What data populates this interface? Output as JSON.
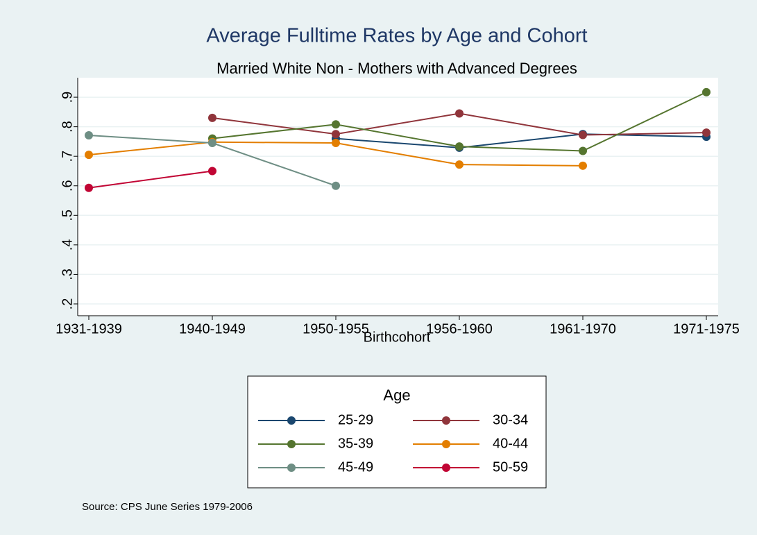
{
  "chart_data": {
    "type": "line",
    "title": "Average Fulltime Rates by Age and Cohort",
    "subtitle": "Married White Non - Mothers with Advanced Degrees",
    "x_label": "Birthcohort",
    "note": "Source: CPS June Series 1979-2006",
    "legend_title": "Age",
    "categories": [
      "1931-1939",
      "1940-1949",
      "1950-1955",
      "1956-1960",
      "1961-1970",
      "1971-1975"
    ],
    "series": [
      {
        "name": "25-29",
        "color": "#1a476f",
        "values": [
          null,
          null,
          0.76,
          0.729,
          0.775,
          0.766
        ]
      },
      {
        "name": "30-34",
        "color": "#90353b",
        "values": [
          null,
          0.83,
          0.775,
          0.845,
          0.772,
          0.78
        ]
      },
      {
        "name": "35-39",
        "color": "#55752f",
        "values": [
          null,
          0.76,
          0.808,
          0.733,
          0.718,
          0.917
        ]
      },
      {
        "name": "40-44",
        "color": "#e37e00",
        "values": [
          0.705,
          0.748,
          0.745,
          0.672,
          0.668,
          null
        ]
      },
      {
        "name": "45-49",
        "color": "#6e8e84",
        "values": [
          0.771,
          0.745,
          0.6,
          null,
          null,
          null
        ]
      },
      {
        "name": "50-59",
        "color": "#c10534",
        "values": [
          0.593,
          0.65,
          null,
          null,
          null,
          null
        ]
      }
    ],
    "ylim": [
      0.16,
      0.966
    ],
    "yticks": [
      {
        "value": 0.2,
        "label": ".2"
      },
      {
        "value": 0.3,
        "label": ".3"
      },
      {
        "value": 0.4,
        "label": ".4"
      },
      {
        "value": 0.5,
        "label": ".5"
      },
      {
        "value": 0.6,
        "label": ".6"
      },
      {
        "value": 0.7,
        "label": ".7"
      },
      {
        "value": 0.8,
        "label": ".8"
      },
      {
        "value": 0.9,
        "label": ".9"
      }
    ],
    "grid": true
  }
}
